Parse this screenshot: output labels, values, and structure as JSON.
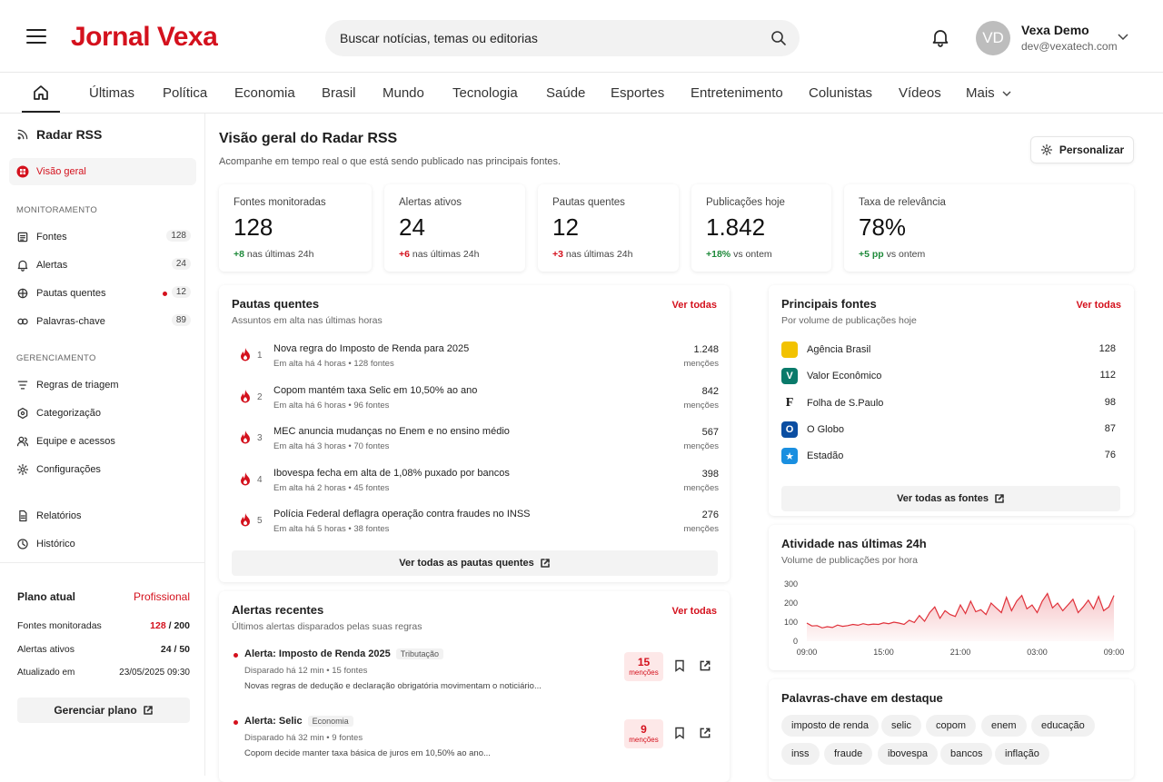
{
  "brand": {
    "name": "Jornal Vexa",
    "color": "#d4111d"
  },
  "search": {
    "placeholder": "Buscar notícias, temas ou editorias"
  },
  "user": {
    "initials": "VD",
    "name": "Vexa Demo",
    "email": "dev@vexatech.com"
  },
  "nav": {
    "items": [
      "Últimas",
      "Política",
      "Economia",
      "Brasil",
      "Mundo",
      "Tecnologia",
      "Saúde",
      "Esportes",
      "Entretenimento",
      "Colunistas",
      "Vídeos",
      "Mais"
    ]
  },
  "sidebar": {
    "title": "Radar RSS",
    "active": "Visão geral",
    "section1": "MONITORAMENTO",
    "monitoring": [
      {
        "label": "Fontes",
        "badge": "128",
        "icon": "list-icon"
      },
      {
        "label": "Alertas",
        "badge": "24",
        "icon": "bell-icon"
      },
      {
        "label": "Pautas quentes",
        "badge": "12",
        "icon": "flame-icon"
      },
      {
        "label": "Palavras-chave",
        "badge": "89",
        "icon": "tag-icon"
      }
    ],
    "section2": "GERENCIAMENTO",
    "management": [
      {
        "label": "Regras de triagem",
        "icon": "filter-icon"
      },
      {
        "label": "Categorização",
        "icon": "category-icon"
      },
      {
        "label": "Equipe e acessos",
        "icon": "team-icon"
      },
      {
        "label": "Configurações",
        "icon": "gear-icon"
      }
    ],
    "other": [
      {
        "label": "Relatórios",
        "icon": "report-icon"
      },
      {
        "label": "Histórico",
        "icon": "clock-icon"
      }
    ],
    "plan": {
      "title": "Plano atual",
      "name": "Profissional",
      "rows": [
        {
          "label": "Fontes monitoradas",
          "used": "128",
          "sep": " / ",
          "total": "200"
        },
        {
          "label": "Alertas ativos",
          "used": "24",
          "sep": " / ",
          "total": "50"
        },
        {
          "label": "Atualizado em",
          "value": "23/05/2025 09:30"
        }
      ],
      "button": "Gerenciar plano"
    }
  },
  "page": {
    "title": "Visão geral do Radar RSS",
    "subtitle": "Acompanhe em tempo real o que está sendo publicado nas principais fontes.",
    "customize": "Personalizar"
  },
  "stats": [
    {
      "label": "Fontes monitoradas",
      "value": "128",
      "delta": "+8",
      "suffix": "nas últimas 24h",
      "tone": "green"
    },
    {
      "label": "Alertas ativos",
      "value": "24",
      "delta": "+6",
      "suffix": "nas últimas 24h",
      "tone": "red"
    },
    {
      "label": "Pautas quentes",
      "value": "12",
      "delta": "+3",
      "suffix": "nas últimas 24h",
      "tone": "red"
    },
    {
      "label": "Publicações hoje",
      "value": "1.842",
      "delta": "+18%",
      "suffix": "vs ontem",
      "tone": "green"
    },
    {
      "label": "Taxa de relevância",
      "value": "78%",
      "delta": "+5 pp",
      "suffix": "vs ontem",
      "tone": "green"
    }
  ],
  "hot": {
    "title": "Pautas quentes",
    "subtitle": "Assuntos em alta nas últimas horas",
    "link": "Ver todas",
    "unit": "menções",
    "items": [
      {
        "rank": "1",
        "title": "Nova regra do Imposto de Renda para 2025",
        "meta": "Em alta há 4 horas • 128 fontes",
        "count": "1.248"
      },
      {
        "rank": "2",
        "title": "Copom mantém taxa Selic em 10,50% ao ano",
        "meta": "Em alta há 6 horas • 96 fontes",
        "count": "842"
      },
      {
        "rank": "3",
        "title": "MEC anuncia mudanças no Enem e no ensino médio",
        "meta": "Em alta há 3 horas • 70 fontes",
        "count": "567"
      },
      {
        "rank": "4",
        "title": "Ibovespa fecha em alta de 1,08% puxado por bancos",
        "meta": "Em alta há 2 horas • 45 fontes",
        "count": "398"
      },
      {
        "rank": "5",
        "title": "Polícia Federal deflagra operação contra fraudes no INSS",
        "meta": "Em alta há 5 horas • 38 fontes",
        "count": "276"
      }
    ],
    "button": "Ver todas as pautas quentes"
  },
  "alerts": {
    "title": "Alertas recentes",
    "subtitle": "Últimos alertas disparados pelas suas regras",
    "link": "Ver todas",
    "unit": "menções",
    "items": [
      {
        "title": "Alerta: Imposto de Renda 2025",
        "tag": "Tributação",
        "meta": "Disparado há 12 min • 15 fontes",
        "desc": "Novas regras de dedução e declaração obrigatória movimentam o noticiário...",
        "count": "15"
      },
      {
        "title": "Alerta: Selic",
        "tag": "Economia",
        "meta": "Disparado há 32 min • 9 fontes",
        "desc": "Copom decide manter taxa básica de juros em 10,50% ao ano...",
        "count": "9"
      }
    ]
  },
  "sources": {
    "title": "Principais fontes",
    "subtitle": "Por volume de publicações hoje",
    "link": "Ver todas",
    "items": [
      {
        "name": "Agência Brasil",
        "count": "128",
        "mark": "",
        "color": "#f2c200"
      },
      {
        "name": "Valor Econômico",
        "count": "112",
        "mark": "V",
        "color": "#0a7a6a"
      },
      {
        "name": "Folha de S.Paulo",
        "count": "98",
        "mark": "F",
        "color": "#111111"
      },
      {
        "name": "O Globo",
        "count": "87",
        "mark": "O",
        "color": "#0b4ea2"
      },
      {
        "name": "Estadão",
        "count": "76",
        "mark": "★",
        "color": "#1a8fe0"
      }
    ],
    "button": "Ver todas as fontes"
  },
  "activity": {
    "title": "Atividade nas últimas 24h",
    "subtitle": "Volume de publicações por hora",
    "chart_data": {
      "type": "area",
      "x_ticks": [
        "09:00",
        "15:00",
        "21:00",
        "03:00",
        "09:00"
      ],
      "y_ticks": [
        "0",
        "100",
        "200",
        "300"
      ],
      "ylim": [
        0,
        300
      ],
      "color": "#e0313a",
      "values": [
        95,
        80,
        82,
        70,
        76,
        72,
        85,
        78,
        82,
        88,
        84,
        92,
        86,
        90,
        88,
        96,
        92,
        100,
        95,
        88,
        110,
        98,
        135,
        105,
        150,
        180,
        120,
        160,
        140,
        130,
        190,
        145,
        210,
        155,
        165,
        140,
        200,
        175,
        150,
        230,
        160,
        210,
        240,
        170,
        190,
        150,
        210,
        250,
        175,
        200,
        160,
        190,
        220,
        150,
        180,
        215,
        170,
        235,
        160,
        180,
        240
      ]
    }
  },
  "keywords": {
    "title": "Palavras-chave em destaque",
    "items": [
      "imposto de renda",
      "selic",
      "copom",
      "enem",
      "educação",
      "inss",
      "fraude",
      "ibovespa",
      "bancos",
      "inflação"
    ]
  }
}
